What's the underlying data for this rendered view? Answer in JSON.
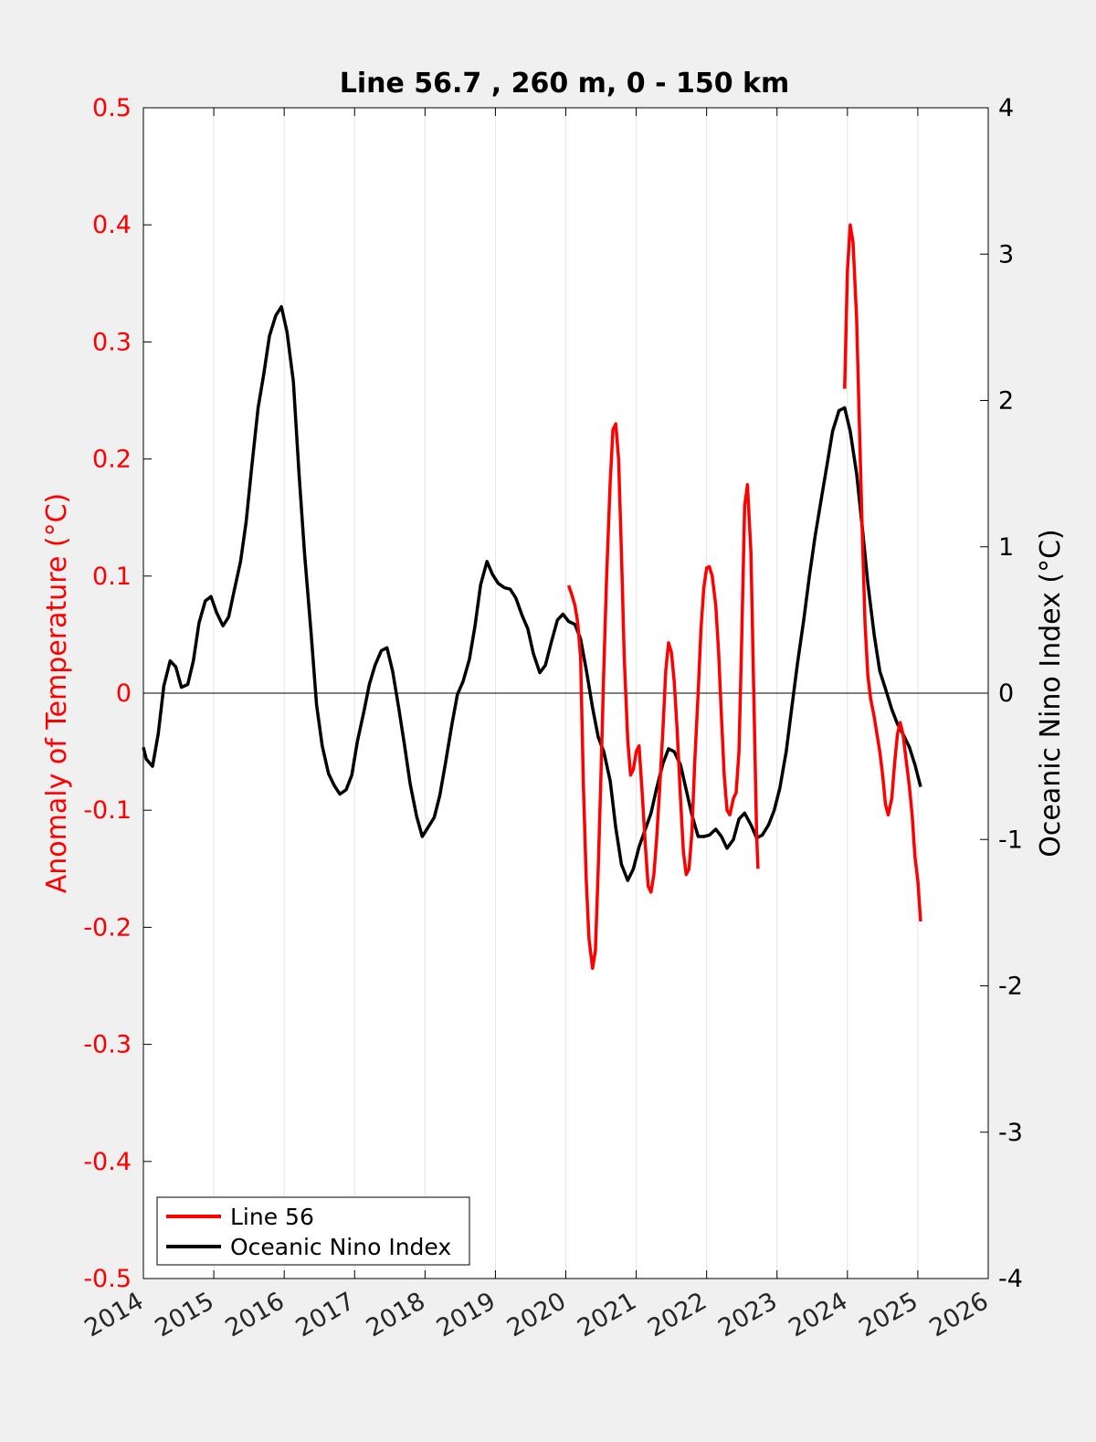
{
  "chart_data": {
    "type": "line",
    "title": "Line 56.7 , 260 m, 0 - 150 km",
    "ylabel_left": "Anomaly of Temperature (°C)",
    "ylabel_right": "Oceanic Nino Index (°C)",
    "xlabel": "",
    "xlim": [
      2014,
      2026
    ],
    "ylim_left": [
      -0.5,
      0.5
    ],
    "ylim_right": [
      -4,
      4
    ],
    "x_ticks": [
      "2014",
      "2015",
      "2016",
      "2017",
      "2018",
      "2019",
      "2020",
      "2021",
      "2022",
      "2023",
      "2024",
      "2025",
      "2026"
    ],
    "y_ticks_left": [
      "-0.5",
      "-0.4",
      "-0.3",
      "-0.2",
      "-0.1",
      "0",
      "0.1",
      "0.2",
      "0.3",
      "0.4",
      "0.5"
    ],
    "y_ticks_right": [
      "-4",
      "-3",
      "-2",
      "-1",
      "0",
      "1",
      "2",
      "3",
      "4"
    ],
    "grid": "vertical",
    "legend_position": "bottom-left",
    "colors": {
      "line56": "#ff0000",
      "oni": "#000000",
      "left_axis": "#ff0000",
      "right_axis": "#000000"
    },
    "series": [
      {
        "name": "Line 56",
        "axis": "left",
        "segments": [
          [
            [
              2020.04,
              0.092
            ],
            [
              2020.08,
              0.085
            ],
            [
              2020.13,
              0.075
            ],
            [
              2020.17,
              0.06
            ],
            [
              2020.21,
              0.03
            ],
            [
              2020.25,
              -0.08
            ],
            [
              2020.29,
              -0.16
            ],
            [
              2020.33,
              -0.21
            ],
            [
              2020.38,
              -0.235
            ],
            [
              2020.42,
              -0.22
            ],
            [
              2020.46,
              -0.15
            ],
            [
              2020.5,
              -0.07
            ],
            [
              2020.54,
              0.02
            ],
            [
              2020.58,
              0.1
            ],
            [
              2020.63,
              0.18
            ],
            [
              2020.67,
              0.225
            ],
            [
              2020.71,
              0.23
            ],
            [
              2020.75,
              0.2
            ],
            [
              2020.79,
              0.12
            ],
            [
              2020.83,
              0.03
            ],
            [
              2020.88,
              -0.04
            ],
            [
              2020.92,
              -0.07
            ],
            [
              2020.96,
              -0.065
            ],
            [
              2021.0,
              -0.05
            ],
            [
              2021.04,
              -0.045
            ],
            [
              2021.08,
              -0.08
            ],
            [
              2021.13,
              -0.13
            ],
            [
              2021.17,
              -0.165
            ],
            [
              2021.21,
              -0.17
            ],
            [
              2021.25,
              -0.155
            ],
            [
              2021.29,
              -0.125
            ],
            [
              2021.33,
              -0.085
            ],
            [
              2021.38,
              -0.03
            ],
            [
              2021.42,
              0.02
            ],
            [
              2021.46,
              0.043
            ],
            [
              2021.5,
              0.035
            ],
            [
              2021.54,
              0.01
            ],
            [
              2021.58,
              -0.03
            ],
            [
              2021.63,
              -0.09
            ],
            [
              2021.67,
              -0.135
            ],
            [
              2021.71,
              -0.155
            ],
            [
              2021.75,
              -0.15
            ],
            [
              2021.79,
              -0.12
            ],
            [
              2021.83,
              -0.06
            ],
            [
              2021.88,
              0.0
            ],
            [
              2021.92,
              0.055
            ],
            [
              2021.96,
              0.09
            ],
            [
              2022.0,
              0.107
            ],
            [
              2022.04,
              0.108
            ],
            [
              2022.08,
              0.1
            ],
            [
              2022.13,
              0.075
            ],
            [
              2022.17,
              0.035
            ],
            [
              2022.21,
              -0.02
            ],
            [
              2022.25,
              -0.07
            ],
            [
              2022.29,
              -0.1
            ],
            [
              2022.33,
              -0.104
            ],
            [
              2022.38,
              -0.09
            ],
            [
              2022.42,
              -0.085
            ],
            [
              2022.46,
              -0.05
            ],
            [
              2022.5,
              0.05
            ],
            [
              2022.54,
              0.16
            ],
            [
              2022.58,
              0.178
            ],
            [
              2022.63,
              0.12
            ],
            [
              2022.67,
              0.0
            ],
            [
              2022.71,
              -0.12
            ],
            [
              2022.73,
              -0.15
            ]
          ],
          [
            [
              2023.96,
              0.26
            ],
            [
              2024.0,
              0.36
            ],
            [
              2024.04,
              0.4
            ],
            [
              2024.08,
              0.385
            ],
            [
              2024.13,
              0.32
            ],
            [
              2024.17,
              0.23
            ],
            [
              2024.21,
              0.14
            ],
            [
              2024.25,
              0.06
            ],
            [
              2024.29,
              0.015
            ],
            [
              2024.33,
              -0.005
            ],
            [
              2024.38,
              -0.02
            ],
            [
              2024.42,
              -0.035
            ],
            [
              2024.46,
              -0.05
            ],
            [
              2024.5,
              -0.07
            ],
            [
              2024.54,
              -0.095
            ],
            [
              2024.58,
              -0.104
            ],
            [
              2024.63,
              -0.09
            ],
            [
              2024.67,
              -0.06
            ],
            [
              2024.71,
              -0.035
            ],
            [
              2024.75,
              -0.025
            ],
            [
              2024.79,
              -0.035
            ],
            [
              2024.83,
              -0.055
            ],
            [
              2024.88,
              -0.08
            ],
            [
              2024.92,
              -0.105
            ],
            [
              2024.96,
              -0.14
            ],
            [
              2025.0,
              -0.16
            ],
            [
              2025.04,
              -0.195
            ]
          ]
        ]
      },
      {
        "name": "Oceanic Nino Index",
        "axis": "right",
        "points": [
          [
            2014.0,
            -0.37
          ],
          [
            2014.04,
            -0.45
          ],
          [
            2014.13,
            -0.5
          ],
          [
            2014.21,
            -0.28
          ],
          [
            2014.29,
            0.05
          ],
          [
            2014.38,
            0.22
          ],
          [
            2014.46,
            0.18
          ],
          [
            2014.54,
            0.04
          ],
          [
            2014.63,
            0.06
          ],
          [
            2014.71,
            0.22
          ],
          [
            2014.79,
            0.48
          ],
          [
            2014.88,
            0.63
          ],
          [
            2014.96,
            0.66
          ],
          [
            2015.04,
            0.55
          ],
          [
            2015.13,
            0.46
          ],
          [
            2015.21,
            0.52
          ],
          [
            2015.29,
            0.7
          ],
          [
            2015.38,
            0.9
          ],
          [
            2015.46,
            1.17
          ],
          [
            2015.54,
            1.55
          ],
          [
            2015.63,
            1.95
          ],
          [
            2015.71,
            2.18
          ],
          [
            2015.79,
            2.44
          ],
          [
            2015.88,
            2.58
          ],
          [
            2015.96,
            2.64
          ],
          [
            2016.04,
            2.47
          ],
          [
            2016.13,
            2.13
          ],
          [
            2016.21,
            1.5
          ],
          [
            2016.29,
            0.95
          ],
          [
            2016.38,
            0.42
          ],
          [
            2016.46,
            -0.08
          ],
          [
            2016.54,
            -0.36
          ],
          [
            2016.63,
            -0.55
          ],
          [
            2016.71,
            -0.63
          ],
          [
            2016.79,
            -0.69
          ],
          [
            2016.88,
            -0.66
          ],
          [
            2016.96,
            -0.56
          ],
          [
            2017.04,
            -0.33
          ],
          [
            2017.13,
            -0.13
          ],
          [
            2017.21,
            0.06
          ],
          [
            2017.29,
            0.19
          ],
          [
            2017.38,
            0.29
          ],
          [
            2017.46,
            0.31
          ],
          [
            2017.54,
            0.15
          ],
          [
            2017.63,
            -0.11
          ],
          [
            2017.71,
            -0.36
          ],
          [
            2017.79,
            -0.62
          ],
          [
            2017.88,
            -0.84
          ],
          [
            2017.96,
            -0.98
          ],
          [
            2018.04,
            -0.92
          ],
          [
            2018.13,
            -0.85
          ],
          [
            2018.21,
            -0.7
          ],
          [
            2018.29,
            -0.48
          ],
          [
            2018.38,
            -0.22
          ],
          [
            2018.46,
            -0.01
          ],
          [
            2018.54,
            0.08
          ],
          [
            2018.63,
            0.23
          ],
          [
            2018.71,
            0.46
          ],
          [
            2018.79,
            0.74
          ],
          [
            2018.88,
            0.9
          ],
          [
            2018.96,
            0.81
          ],
          [
            2019.04,
            0.75
          ],
          [
            2019.13,
            0.72
          ],
          [
            2019.21,
            0.71
          ],
          [
            2019.29,
            0.65
          ],
          [
            2019.38,
            0.53
          ],
          [
            2019.46,
            0.44
          ],
          [
            2019.54,
            0.27
          ],
          [
            2019.63,
            0.14
          ],
          [
            2019.71,
            0.19
          ],
          [
            2019.79,
            0.34
          ],
          [
            2019.88,
            0.5
          ],
          [
            2019.96,
            0.54
          ],
          [
            2020.04,
            0.49
          ],
          [
            2020.13,
            0.47
          ],
          [
            2020.21,
            0.37
          ],
          [
            2020.29,
            0.16
          ],
          [
            2020.38,
            -0.1
          ],
          [
            2020.46,
            -0.3
          ],
          [
            2020.54,
            -0.4
          ],
          [
            2020.63,
            -0.6
          ],
          [
            2020.71,
            -0.92
          ],
          [
            2020.79,
            -1.17
          ],
          [
            2020.88,
            -1.28
          ],
          [
            2020.96,
            -1.2
          ],
          [
            2021.04,
            -1.05
          ],
          [
            2021.13,
            -0.93
          ],
          [
            2021.21,
            -0.82
          ],
          [
            2021.29,
            -0.65
          ],
          [
            2021.38,
            -0.48
          ],
          [
            2021.46,
            -0.38
          ],
          [
            2021.54,
            -0.4
          ],
          [
            2021.63,
            -0.49
          ],
          [
            2021.71,
            -0.66
          ],
          [
            2021.79,
            -0.83
          ],
          [
            2021.88,
            -0.98
          ],
          [
            2021.96,
            -0.98
          ],
          [
            2022.04,
            -0.97
          ],
          [
            2022.13,
            -0.93
          ],
          [
            2022.21,
            -0.98
          ],
          [
            2022.29,
            -1.06
          ],
          [
            2022.38,
            -1.0
          ],
          [
            2022.46,
            -0.86
          ],
          [
            2022.54,
            -0.82
          ],
          [
            2022.63,
            -0.9
          ],
          [
            2022.71,
            -0.99
          ],
          [
            2022.79,
            -0.97
          ],
          [
            2022.88,
            -0.9
          ],
          [
            2022.96,
            -0.8
          ],
          [
            2023.04,
            -0.65
          ],
          [
            2023.13,
            -0.4
          ],
          [
            2023.21,
            -0.1
          ],
          [
            2023.29,
            0.2
          ],
          [
            2023.38,
            0.5
          ],
          [
            2023.46,
            0.8
          ],
          [
            2023.54,
            1.07
          ],
          [
            2023.63,
            1.33
          ],
          [
            2023.71,
            1.56
          ],
          [
            2023.79,
            1.79
          ],
          [
            2023.88,
            1.93
          ],
          [
            2023.96,
            1.95
          ],
          [
            2024.04,
            1.79
          ],
          [
            2024.13,
            1.5
          ],
          [
            2024.21,
            1.14
          ],
          [
            2024.29,
            0.75
          ],
          [
            2024.38,
            0.4
          ],
          [
            2024.46,
            0.15
          ],
          [
            2024.54,
            0.03
          ],
          [
            2024.63,
            -0.11
          ],
          [
            2024.71,
            -0.21
          ],
          [
            2024.79,
            -0.28
          ],
          [
            2024.88,
            -0.37
          ],
          [
            2024.96,
            -0.49
          ],
          [
            2025.04,
            -0.64
          ]
        ]
      }
    ]
  }
}
